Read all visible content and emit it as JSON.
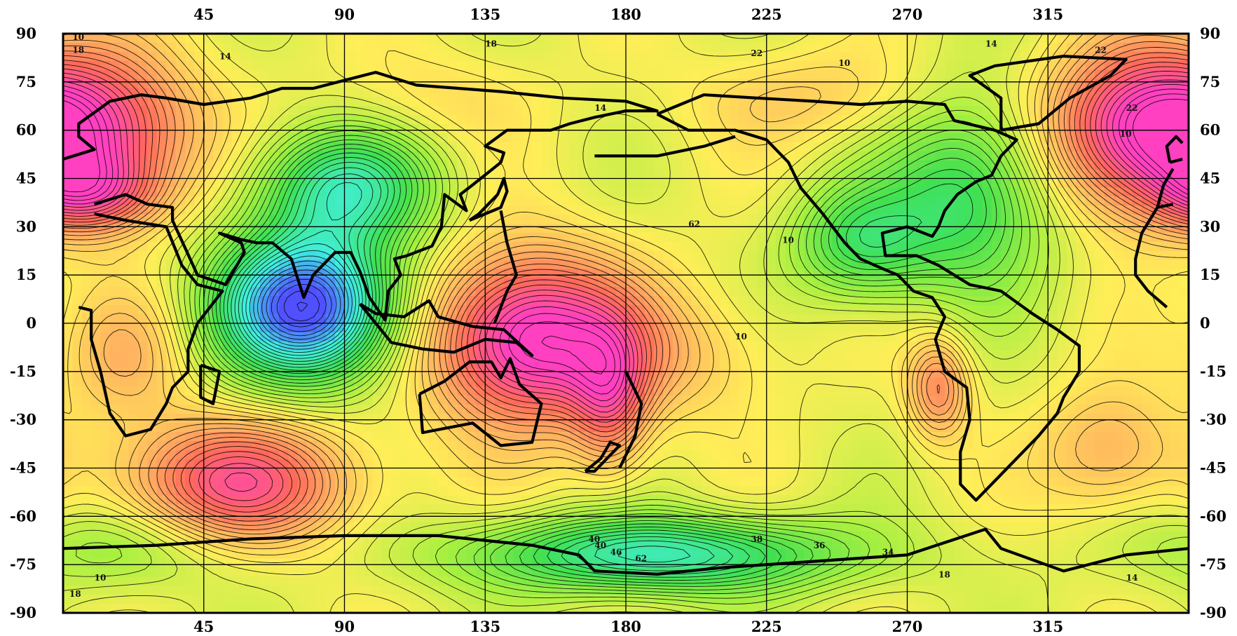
{
  "map": {
    "top_ticks": [
      "45",
      "90",
      "135",
      "180",
      "225",
      "270",
      "315"
    ],
    "bottom_ticks": [
      "45",
      "90",
      "135",
      "180",
      "225",
      "270",
      "315"
    ],
    "left_ticks": [
      "90",
      "75",
      "60",
      "45",
      "30",
      "15",
      "0",
      "-15",
      "-30",
      "-45",
      "-60",
      "-75",
      "-90"
    ],
    "right_ticks": [
      "90",
      "75",
      "60",
      "45",
      "30",
      "15",
      "0",
      "-15",
      "-30",
      "-45",
      "-60",
      "-75",
      "-90"
    ],
    "longitudes": [
      45,
      90,
      135,
      180,
      225,
      270,
      315
    ],
    "latitudes": [
      90,
      75,
      60,
      45,
      30,
      15,
      0,
      -15,
      -30,
      -45,
      -60,
      -75,
      -90
    ],
    "lon_range": [
      0,
      360
    ],
    "lat_range": [
      -90,
      90
    ],
    "grid": true,
    "contour_labels": [
      "10",
      "14",
      "18",
      "22",
      "10",
      "14",
      "10",
      "22",
      "62",
      "10",
      "18",
      "14",
      "10",
      "40",
      "46",
      "62",
      "40",
      "38",
      "36",
      "34",
      "18",
      "14",
      "10",
      "18",
      "22"
    ],
    "colors": {
      "magenta": "#ff40c0",
      "red": "#ff6a5a",
      "orange": "#ffb060",
      "yellow": "#ffee58",
      "lime": "#a8f040",
      "green": "#40e050",
      "cyan": "#40f0e0",
      "blue": "#5050ff",
      "contour": "#000000",
      "border": "#000000"
    }
  }
}
